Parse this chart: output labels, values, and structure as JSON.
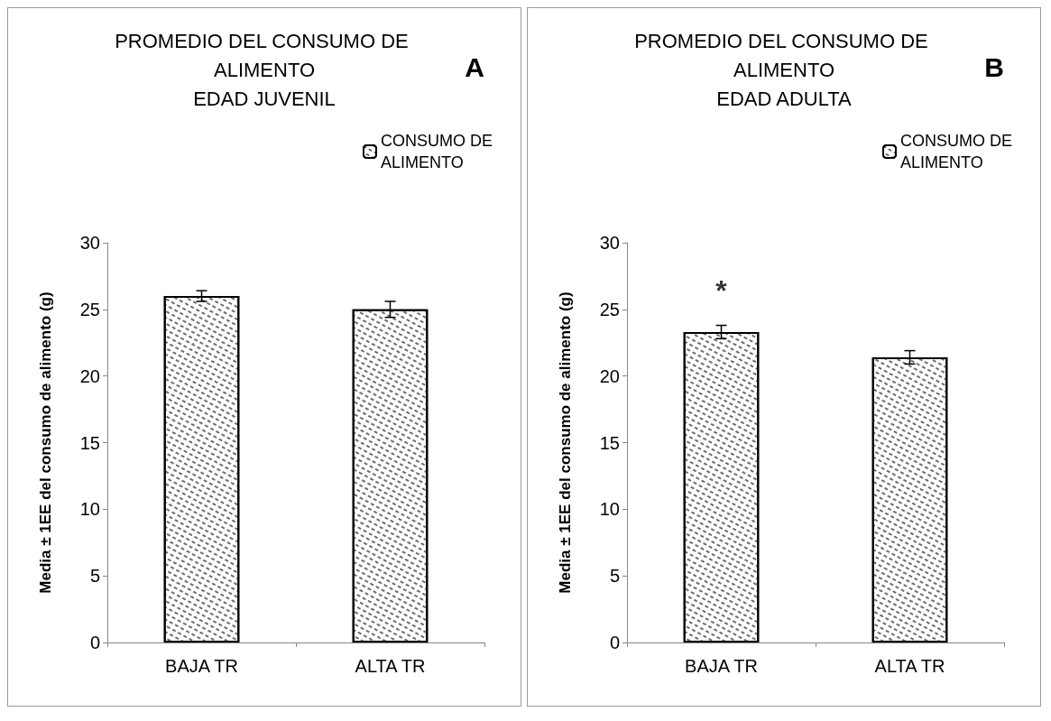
{
  "chart_data": [
    {
      "type": "bar",
      "title": "PROMEDIO DEL CONSUMO DE ALIMENTO",
      "subtitle": "EDAD JUVENIL",
      "ylabel": "Media ± 1EE del consumo de alimento (g)",
      "categories": [
        "BAJA TR",
        "ALTA TR"
      ],
      "series": [
        {
          "name": "CONSUMO DE ALIMENTO",
          "color": "#ffffff",
          "values": [
            26.0,
            25.0
          ],
          "errors": [
            0.4,
            0.6
          ]
        }
      ],
      "ylim": [
        0,
        30
      ],
      "yticks": [
        0,
        5,
        10,
        15,
        20,
        25,
        30
      ],
      "grid": false,
      "legend": "top right",
      "annotations": [
        "A"
      ]
    },
    {
      "type": "bar",
      "title": "PROMEDIO DEL CONSUMO DE ALIMENTO",
      "subtitle": "EDAD ADULTA",
      "ylabel": "Media ± 1EE del consumo de alimento (g)",
      "categories": [
        "BAJA TR",
        "ALTA TR"
      ],
      "series": [
        {
          "name": "CONSUMO DE ALIMENTO",
          "color": "#ffffff",
          "values": [
            23.3,
            21.4
          ],
          "errors": [
            0.5,
            0.5
          ]
        }
      ],
      "ylim": [
        0,
        30
      ],
      "yticks": [
        0,
        5,
        10,
        15,
        20,
        25,
        30
      ],
      "grid": false,
      "legend": "top right",
      "annotations": [
        "B",
        "*"
      ]
    }
  ]
}
